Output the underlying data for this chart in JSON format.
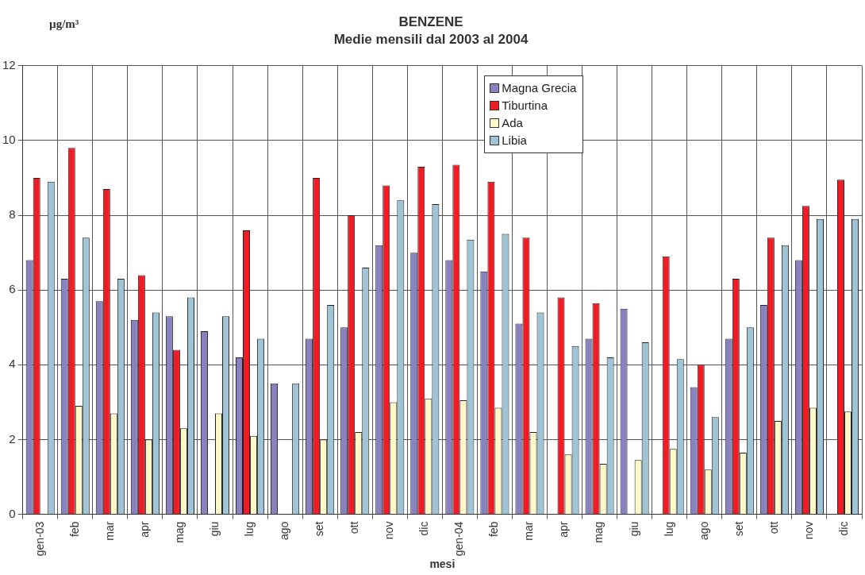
{
  "chart_data": {
    "type": "bar",
    "title": "BENZENE",
    "subtitle": "Medie mensili dal 2003 al 2004",
    "xlabel": "mesi",
    "ylabel": "µg/m³",
    "categories": [
      "gen-03",
      "feb",
      "mar",
      "apr",
      "mag",
      "giu",
      "lug",
      "ago",
      "set",
      "ott",
      "nov",
      "dic",
      "gen-04",
      "feb",
      "mar",
      "apr",
      "mag",
      "giu",
      "lug",
      "ago",
      "set",
      "ott",
      "nov",
      "dic"
    ],
    "series": [
      {
        "name": "Magna Grecia",
        "color": "#8882c0",
        "values": [
          6.8,
          6.3,
          5.7,
          5.2,
          5.3,
          4.9,
          4.2,
          3.5,
          4.7,
          5.0,
          7.2,
          7.0,
          6.8,
          6.5,
          5.1,
          null,
          4.7,
          5.5,
          null,
          3.4,
          4.7,
          5.6,
          6.8,
          null
        ]
      },
      {
        "name": "Tiburtina",
        "color": "#ee1c24",
        "values": [
          9.0,
          9.8,
          8.7,
          6.4,
          4.4,
          null,
          7.6,
          null,
          9.0,
          8.0,
          8.8,
          9.3,
          9.35,
          8.9,
          7.4,
          5.8,
          5.65,
          null,
          6.9,
          4.0,
          6.3,
          7.4,
          8.25,
          8.95
        ]
      },
      {
        "name": "Ada",
        "color": "#fff8c8",
        "values": [
          null,
          2.9,
          2.7,
          2.0,
          2.3,
          2.7,
          2.1,
          null,
          2.0,
          2.2,
          3.0,
          3.1,
          3.05,
          2.85,
          2.2,
          1.6,
          1.35,
          1.45,
          1.75,
          1.2,
          1.65,
          2.5,
          2.85,
          2.75
        ]
      },
      {
        "name": "Libia",
        "color": "#9ec4d6",
        "values": [
          8.9,
          7.4,
          6.3,
          5.4,
          5.8,
          5.3,
          4.7,
          3.5,
          5.6,
          6.6,
          8.4,
          8.3,
          7.35,
          7.5,
          5.4,
          4.5,
          4.2,
          4.6,
          4.15,
          2.6,
          5.0,
          7.2,
          7.9,
          7.9
        ]
      }
    ],
    "ylim": [
      0,
      12
    ],
    "yticks": [
      0,
      2,
      4,
      6,
      8,
      10,
      12
    ],
    "grid": true,
    "legend": "top"
  }
}
